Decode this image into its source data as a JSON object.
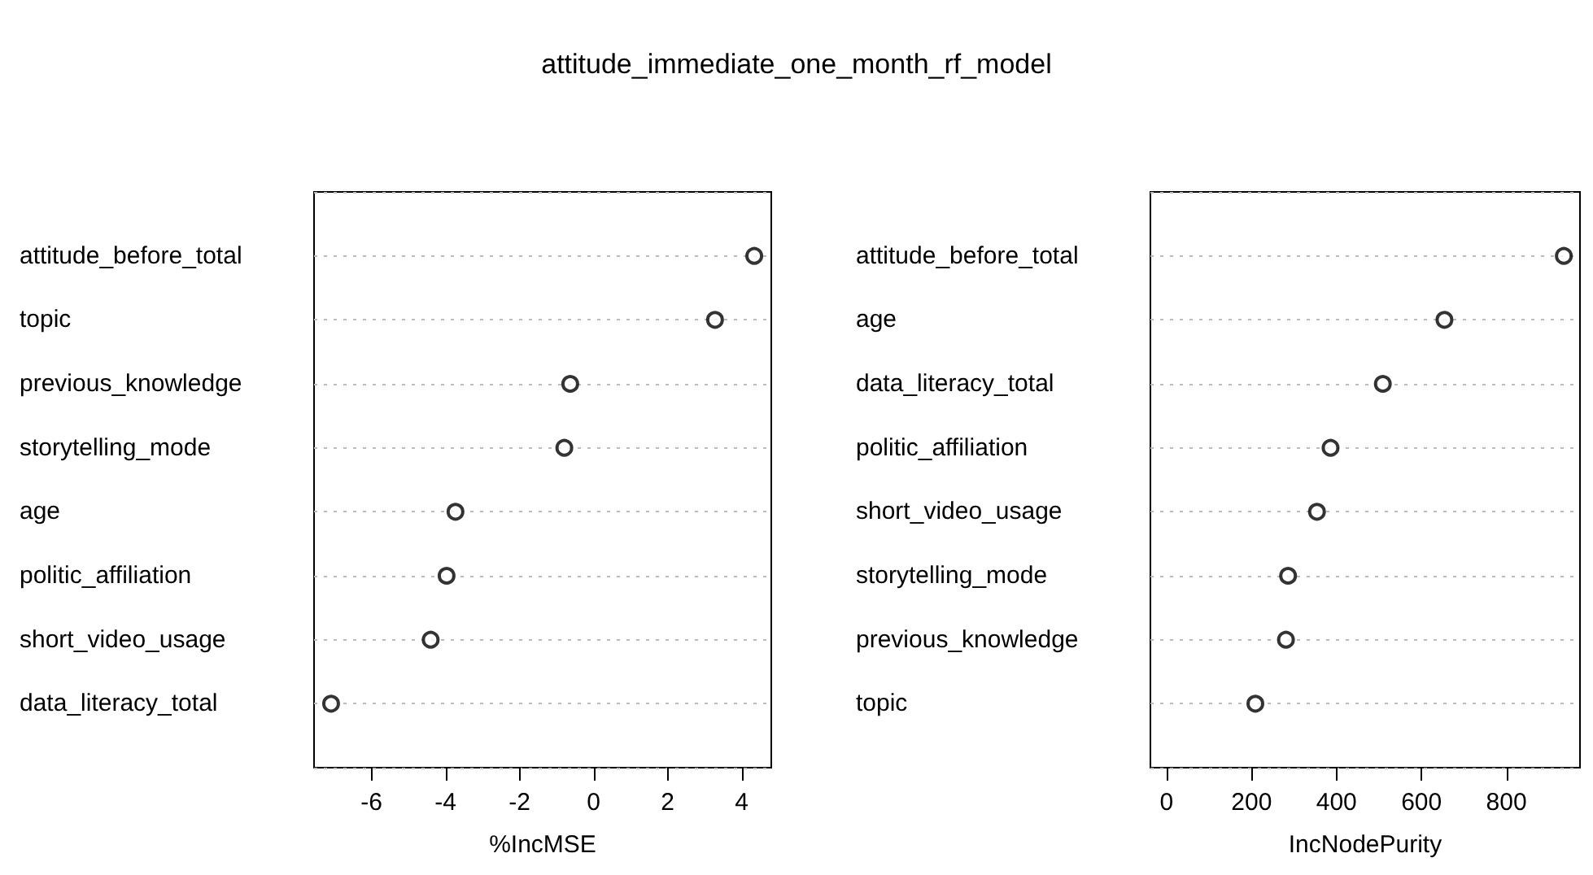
{
  "chart_data": [
    {
      "type": "scatter",
      "title": "attitude_immediate_one_month_rf_model",
      "xlabel": "%IncMSE",
      "categories": [
        "attitude_before_total",
        "topic",
        "previous_knowledge",
        "storytelling_mode",
        "age",
        "politic_affiliation",
        "short_video_usage",
        "data_literacy_total"
      ],
      "orientation": "horizontal",
      "series": [
        {
          "color": "#000000",
          "values": [
            4.34,
            3.28,
            -0.63,
            -0.79,
            -3.73,
            -3.97,
            -4.4,
            -7.09
          ]
        }
      ],
      "xlim": [
        -7.55,
        4.8
      ],
      "xticks": [
        -6,
        -4,
        -2,
        0,
        2,
        4
      ],
      "grid": "y",
      "marker": "circle"
    },
    {
      "type": "scatter",
      "xlabel": "IncNodePurity",
      "categories": [
        "attitude_before_total",
        "age",
        "data_literacy_total",
        "politic_affiliation",
        "short_video_usage",
        "storytelling_mode",
        "previous_knowledge",
        "topic"
      ],
      "orientation": "horizontal",
      "series": [
        {
          "color": "#000000",
          "values": [
            935,
            654,
            509,
            386,
            354,
            286,
            281,
            209
          ]
        }
      ],
      "xlim": [
        -38,
        973
      ],
      "xticks": [
        0,
        200,
        400,
        600,
        800
      ],
      "grid": "y",
      "marker": "circle"
    }
  ]
}
